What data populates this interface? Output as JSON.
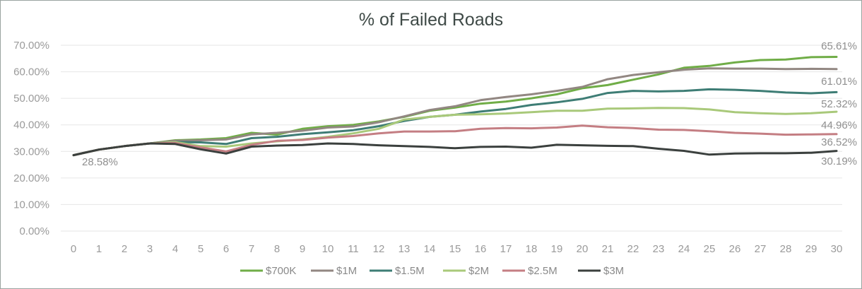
{
  "chart_data": {
    "type": "line",
    "title": "% of Failed Roads",
    "xlabel": "",
    "ylabel": "",
    "x": [
      0,
      1,
      2,
      3,
      4,
      5,
      6,
      7,
      8,
      9,
      10,
      11,
      12,
      13,
      14,
      15,
      16,
      17,
      18,
      19,
      20,
      21,
      22,
      23,
      24,
      25,
      26,
      27,
      28,
      29,
      30
    ],
    "ylim": [
      0,
      70
    ],
    "ytick_step": 10,
    "ytick_format": "percent_2dp",
    "grid": "horizontal",
    "legend_position": "bottom",
    "series": [
      {
        "name": "$700K",
        "color": "#70ad47",
        "values": [
          28.58,
          30.7,
          32.0,
          33.0,
          34.2,
          34.5,
          35.0,
          37.0,
          36.3,
          38.5,
          39.5,
          40.0,
          41.3,
          43.0,
          45.3,
          46.5,
          48.0,
          48.8,
          50.0,
          51.5,
          53.8,
          55.0,
          57.0,
          59.0,
          61.5,
          62.2,
          63.5,
          64.4,
          64.6,
          65.5,
          65.61
        ]
      },
      {
        "name": "$1M",
        "color": "#928782",
        "values": [
          28.58,
          30.7,
          32.0,
          33.0,
          34.0,
          34.2,
          34.5,
          36.4,
          37.0,
          37.8,
          39.0,
          39.4,
          41.0,
          43.2,
          45.6,
          47.0,
          49.3,
          50.5,
          51.5,
          52.8,
          54.3,
          57.2,
          58.8,
          59.8,
          60.8,
          61.3,
          61.2,
          61.2,
          61.0,
          61.1,
          61.01
        ]
      },
      {
        "name": "$1.5M",
        "color": "#3e7d75",
        "values": [
          28.58,
          30.7,
          32.0,
          33.0,
          33.5,
          33.4,
          32.8,
          35.0,
          35.5,
          36.5,
          37.2,
          38.0,
          39.5,
          41.5,
          43.0,
          43.8,
          45.0,
          46.0,
          47.5,
          48.5,
          49.8,
          52.0,
          52.8,
          52.6,
          52.8,
          53.4,
          53.2,
          52.8,
          52.2,
          51.9,
          52.32
        ]
      },
      {
        "name": "$2M",
        "color": "#a9c97a",
        "values": [
          28.58,
          30.7,
          32.0,
          33.0,
          33.5,
          32.0,
          31.8,
          33.0,
          33.8,
          34.5,
          35.5,
          36.8,
          38.5,
          42.0,
          43.0,
          43.8,
          44.0,
          44.3,
          44.8,
          45.3,
          45.3,
          46.1,
          46.2,
          46.4,
          46.3,
          45.8,
          44.8,
          44.4,
          44.1,
          44.4,
          44.96
        ]
      },
      {
        "name": "$2.5M",
        "color": "#c47e83",
        "values": [
          28.58,
          30.7,
          32.0,
          33.0,
          33.2,
          31.5,
          30.0,
          32.5,
          34.0,
          34.3,
          35.2,
          35.8,
          36.8,
          37.5,
          37.5,
          37.6,
          38.5,
          38.8,
          38.7,
          39.0,
          39.7,
          39.1,
          38.8,
          38.2,
          38.1,
          37.6,
          37.0,
          36.7,
          36.3,
          36.4,
          36.52
        ]
      },
      {
        "name": "$3M",
        "color": "#3b403e",
        "values": [
          28.58,
          30.7,
          32.0,
          33.0,
          32.8,
          30.8,
          29.2,
          31.8,
          32.2,
          32.4,
          33.0,
          32.8,
          32.3,
          32.0,
          31.7,
          31.2,
          31.7,
          31.8,
          31.4,
          32.5,
          32.3,
          32.1,
          32.0,
          31.0,
          30.2,
          28.8,
          29.2,
          29.3,
          29.3,
          29.5,
          30.19
        ]
      }
    ],
    "data_labels": [
      {
        "series": "$700K",
        "x": 30,
        "text": "65.61%"
      },
      {
        "series": "$1M",
        "x": 30,
        "text": "61.01%"
      },
      {
        "series": "$1.5M",
        "x": 30,
        "text": "52.32%"
      },
      {
        "series": "$2M",
        "x": 30,
        "text": "44.96%"
      },
      {
        "series": "$2.5M",
        "x": 30,
        "text": "36.52%"
      },
      {
        "series": "$3M",
        "x": 30,
        "text": "30.19%"
      },
      {
        "series": "$700K",
        "x": 0,
        "text": "28.58%"
      }
    ]
  }
}
